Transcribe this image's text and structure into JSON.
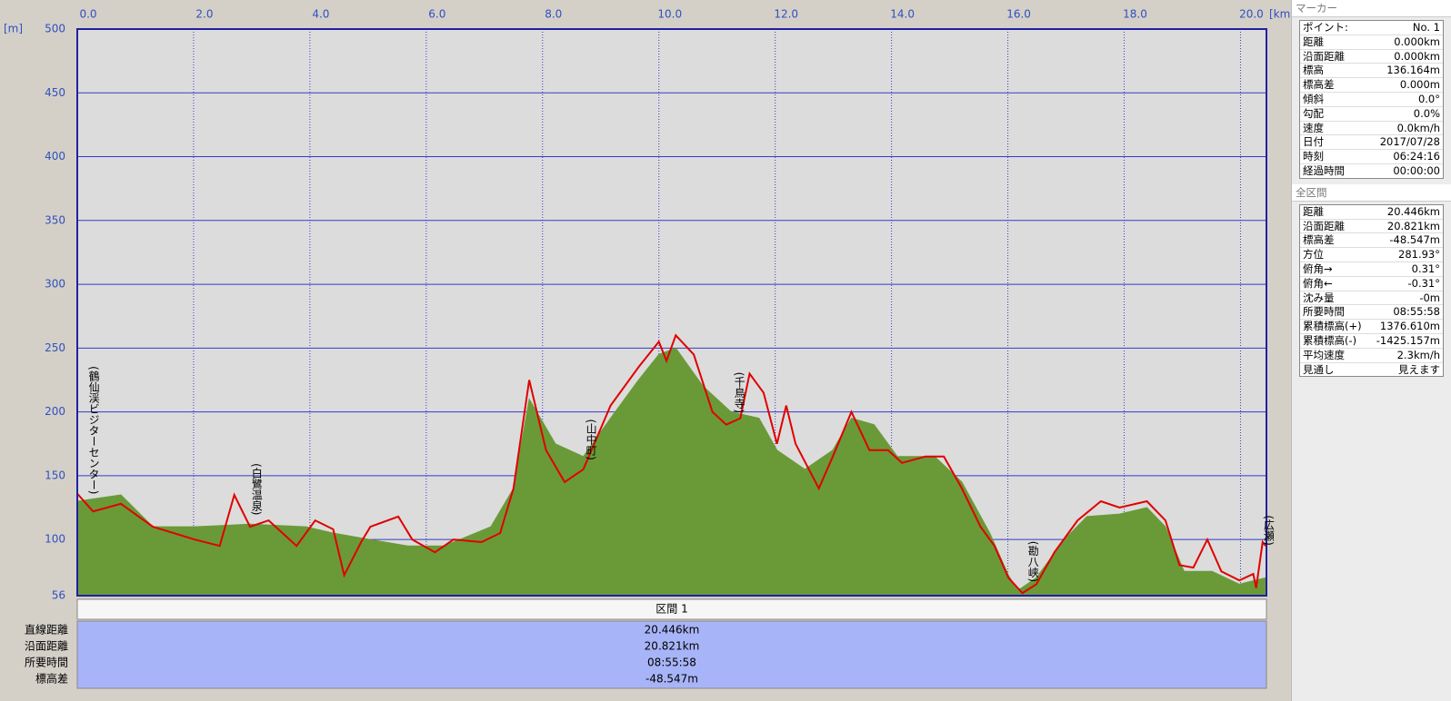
{
  "chart_data": {
    "type": "line",
    "x_unit": "[km]",
    "y_unit": "[m]",
    "xlim": [
      0,
      20.446
    ],
    "ylim": [
      56,
      500
    ],
    "xticks": [
      {
        "value": 0,
        "label": "0.0"
      },
      {
        "value": 2,
        "label": "2.0"
      },
      {
        "value": 4,
        "label": "4.0"
      },
      {
        "value": 6,
        "label": "6.0"
      },
      {
        "value": 8,
        "label": "8.0"
      },
      {
        "value": 10,
        "label": "10.0"
      },
      {
        "value": 12,
        "label": "12.0"
      },
      {
        "value": 14,
        "label": "14.0"
      },
      {
        "value": 16,
        "label": "16.0"
      },
      {
        "value": 18,
        "label": "18.0"
      },
      {
        "value": 20,
        "label": "20.0"
      }
    ],
    "yticks": [
      56,
      100,
      150,
      200,
      250,
      300,
      350,
      400,
      450,
      500
    ],
    "grid": true,
    "series": [
      {
        "color": "#6a9a38",
        "fill": true,
        "x": [
          0,
          0.75,
          1.3,
          2.02,
          2.97,
          3.93,
          4.4,
          5.04,
          5.68,
          6.31,
          7.11,
          7.5,
          7.77,
          8.22,
          8.7,
          9.17,
          9.65,
          10,
          10.29,
          10.76,
          11.24,
          11.72,
          12.03,
          12.51,
          12.99,
          13.31,
          13.7,
          14.1,
          14.74,
          15.21,
          15.69,
          16.01,
          16.17,
          16.49,
          16.97,
          17.36,
          17.92,
          18.39,
          18.71,
          19.03,
          19.51,
          19.98,
          20.43
        ],
        "values": [
          130,
          135,
          110,
          110,
          112,
          110,
          105,
          100,
          95,
          95,
          110,
          140,
          210,
          175,
          165,
          195,
          225,
          245,
          250,
          220,
          200,
          195,
          170,
          155,
          170,
          195,
          190,
          165,
          165,
          145,
          105,
          72,
          60,
          70,
          100,
          118,
          120,
          125,
          110,
          75,
          75,
          65,
          70
        ]
      },
      {
        "color": "#e00000",
        "fill": false,
        "x": [
          0,
          0.27,
          0.75,
          1.3,
          2.02,
          2.45,
          2.7,
          2.97,
          3.29,
          3.77,
          4.09,
          4.4,
          4.59,
          4.88,
          5.04,
          5.52,
          5.76,
          6.15,
          6.47,
          6.95,
          7.27,
          7.5,
          7.77,
          8.06,
          8.38,
          8.7,
          9.17,
          9.65,
          10,
          10.13,
          10.29,
          10.6,
          10.92,
          11.16,
          11.4,
          11.56,
          11.8,
          12.03,
          12.19,
          12.35,
          12.75,
          12.99,
          13.31,
          13.62,
          13.94,
          14.18,
          14.58,
          14.9,
          15.21,
          15.53,
          15.77,
          16.01,
          16.25,
          16.49,
          16.8,
          17.2,
          17.6,
          17.92,
          18.39,
          18.71,
          18.95,
          19.19,
          19.43,
          19.67,
          19.98,
          20.22,
          20.27,
          20.38,
          20.43
        ],
        "values": [
          136,
          122,
          128,
          110,
          100,
          95,
          135,
          110,
          115,
          95,
          115,
          108,
          72,
          98,
          110,
          118,
          100,
          90,
          100,
          98,
          105,
          140,
          225,
          170,
          145,
          155,
          205,
          235,
          255,
          240,
          260,
          245,
          200,
          190,
          195,
          230,
          215,
          175,
          205,
          175,
          140,
          165,
          200,
          170,
          170,
          160,
          165,
          165,
          140,
          110,
          95,
          70,
          58,
          65,
          90,
          115,
          130,
          125,
          130,
          115,
          80,
          78,
          100,
          75,
          68,
          73,
          62,
          98,
          95
        ]
      }
    ],
    "annotations": [
      {
        "text": "(鶴仙渓ビジターセンター)",
        "x": 0.15
      },
      {
        "text": "(白鷺温泉)",
        "x": 2.95
      },
      {
        "text": "(山中町)",
        "x": 8.7
      },
      {
        "text": "(千鳥寺)",
        "x": 11.25
      },
      {
        "text": "(勘八峡)",
        "x": 16.3
      },
      {
        "text": "(広瀬)",
        "x": 20.35
      }
    ]
  },
  "section_table": {
    "header": "区間 1",
    "labels": [
      "直線距離",
      "沿面距離",
      "所要時間",
      "標高差"
    ],
    "values": [
      "20.446km",
      "20.821km",
      "08:55:58",
      "-48.547m"
    ]
  },
  "marker": {
    "title": "マーカー",
    "rows": [
      [
        "ポイント:",
        "No. 1"
      ],
      [
        "距離",
        "0.000km"
      ],
      [
        "沿面距離",
        "0.000km"
      ],
      [
        "標高",
        "136.164m"
      ],
      [
        "標高差",
        "0.000m"
      ],
      [
        "傾斜",
        "0.0°"
      ],
      [
        "勾配",
        "0.0%"
      ],
      [
        "速度",
        "0.0km/h"
      ],
      [
        "日付",
        "2017/07/28"
      ],
      [
        "時刻",
        "06:24:16"
      ],
      [
        "経過時間",
        "00:00:00"
      ]
    ]
  },
  "total": {
    "title": "全区間",
    "rows": [
      [
        "距離",
        "20.446km"
      ],
      [
        "沿面距離",
        "20.821km"
      ],
      [
        "標高差",
        "-48.547m"
      ],
      [
        "方位",
        "281.93°"
      ],
      [
        "俯角→",
        "0.31°"
      ],
      [
        "俯角←",
        "-0.31°"
      ],
      [
        "沈み量",
        "-0m"
      ],
      [
        "所要時間",
        "08:55:58"
      ],
      [
        "累積標高(+)",
        "1376.610m"
      ],
      [
        "累積標高(-)",
        "-1425.157m"
      ],
      [
        "平均速度",
        "2.3km/h"
      ],
      [
        "見通し",
        "見えます"
      ]
    ]
  }
}
